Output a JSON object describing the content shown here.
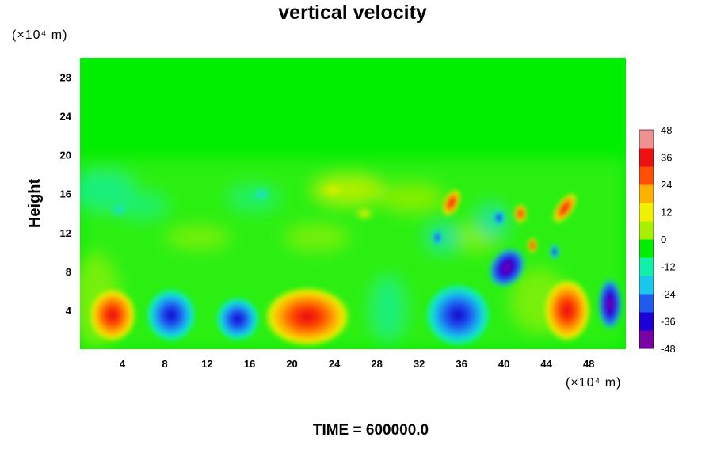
{
  "chart_data": {
    "type": "heatmap",
    "title": "vertical velocity",
    "ylabel": "Height",
    "xunit": "(×10⁴ m)",
    "yunit": "(×10⁴ m)",
    "footer": "TIME = 600000.0",
    "xlim": [
      0,
      51.5
    ],
    "ylim": [
      0,
      30
    ],
    "xticks": [
      4,
      8,
      12,
      16,
      20,
      24,
      28,
      32,
      36,
      40,
      44,
      48
    ],
    "yticks": [
      4,
      8,
      12,
      16,
      20,
      24,
      28
    ],
    "colorbar": {
      "range": [
        -48,
        48
      ],
      "ticks": [
        48,
        36,
        24,
        12,
        0,
        -12,
        -24,
        -36,
        -48
      ],
      "colors": [
        "#7a00a8",
        "#1c00d8",
        "#1e5cf0",
        "#18c8ee",
        "#10f0a8",
        "#00ee00",
        "#a8f000",
        "#f0f000",
        "#ffb000",
        "#ff5000",
        "#ee1010",
        "#f09090"
      ]
    },
    "features": [
      {
        "x": 3.8,
        "y": 3.5,
        "value": 36
      },
      {
        "x": 8.0,
        "y": 3.5,
        "value": -30
      },
      {
        "x": 14.8,
        "y": 3.0,
        "value": -34
      },
      {
        "x": 22.5,
        "y": 3.5,
        "value": 38
      },
      {
        "x": 34.5,
        "y": 3.0,
        "value": -38
      },
      {
        "x": 39.8,
        "y": 8.0,
        "value": -44
      },
      {
        "x": 45.8,
        "y": 3.0,
        "value": 42
      },
      {
        "x": 50.0,
        "y": 4.5,
        "value": -40
      },
      {
        "x": 35.0,
        "y": 15.5,
        "value": 30
      },
      {
        "x": 45.5,
        "y": 15.0,
        "value": 30
      },
      {
        "x": 41.5,
        "y": 14.0,
        "value": 30
      }
    ]
  }
}
